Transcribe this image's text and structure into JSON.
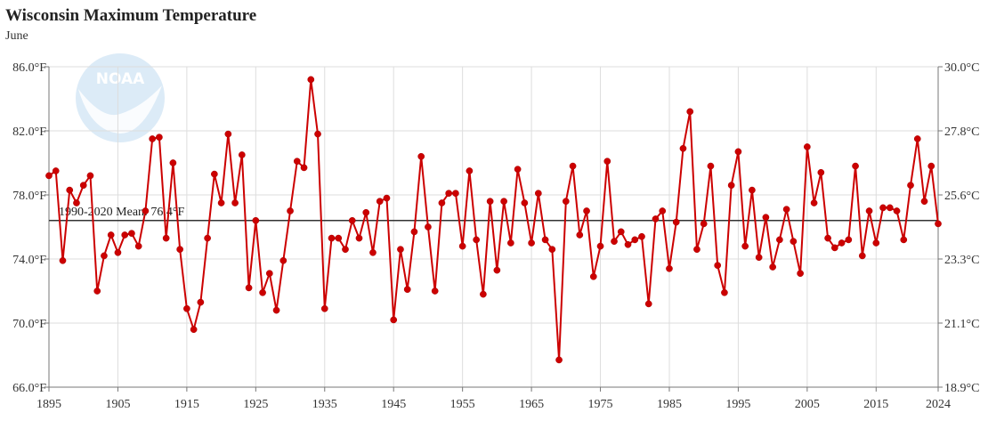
{
  "chart_data": {
    "type": "line",
    "title": "Wisconsin Maximum Temperature",
    "subtitle": "June",
    "xlabel": "",
    "ylabel": "",
    "xlim": [
      1895,
      2024
    ],
    "ylim": [
      66,
      86
    ],
    "y_ticks_left": [
      "66.0°F",
      "70.0°F",
      "74.0°F",
      "78.0°F",
      "82.0°F",
      "86.0°F"
    ],
    "y_tick_values": [
      66,
      70,
      74,
      78,
      82,
      86
    ],
    "y_ticks_right": [
      "18.9°C",
      "21.1°C",
      "23.3°C",
      "25.6°C",
      "27.8°C",
      "30.0°C"
    ],
    "x_ticks": [
      "1895",
      "1905",
      "1915",
      "1925",
      "1935",
      "1945",
      "1955",
      "1965",
      "1975",
      "1985",
      "1995",
      "2005",
      "2015",
      "2024"
    ],
    "x_tick_values": [
      1895,
      1905,
      1915,
      1925,
      1935,
      1945,
      1955,
      1965,
      1975,
      1985,
      1995,
      2005,
      2015,
      2024
    ],
    "grid": true,
    "colors": {
      "line": "#cc0000",
      "marker": "#cc0000",
      "mean": "#333333",
      "grid": "#dddddd",
      "axis": "#777777"
    },
    "mean": {
      "value": 76.4,
      "label": "1990-2020 Mean: 76.4°F"
    },
    "logo": {
      "name": "noaa-logo",
      "text": "NOAA"
    },
    "series": [
      {
        "x": [
          1895,
          1896,
          1897,
          1898,
          1899,
          1900,
          1901,
          1902,
          1903,
          1904,
          1905,
          1906,
          1907,
          1908,
          1909,
          1910,
          1911,
          1912,
          1913,
          1914,
          1915,
          1916,
          1917,
          1918,
          1919,
          1920,
          1921,
          1922,
          1923,
          1924,
          1925,
          1926,
          1927,
          1928,
          1929,
          1930,
          1931,
          1932,
          1933,
          1934,
          1935,
          1936,
          1937,
          1938,
          1939,
          1940,
          1941,
          1942,
          1943,
          1944,
          1945,
          1946,
          1947,
          1948,
          1949,
          1950,
          1951,
          1952,
          1953,
          1954,
          1955,
          1956,
          1957,
          1958,
          1959,
          1960,
          1961,
          1962,
          1963,
          1964,
          1965,
          1966,
          1967,
          1968,
          1969,
          1970,
          1971,
          1972,
          1973,
          1974,
          1975,
          1976,
          1977,
          1978,
          1979,
          1980,
          1981,
          1982,
          1983,
          1984,
          1985,
          1986,
          1987,
          1988,
          1989,
          1990,
          1991,
          1992,
          1993,
          1994,
          1995,
          1996,
          1997,
          1998,
          1999,
          2000,
          2001,
          2002,
          2003,
          2004,
          2005,
          2006,
          2007,
          2008,
          2009,
          2010,
          2011,
          2012,
          2013,
          2014,
          2015,
          2016,
          2017,
          2018,
          2019,
          2020,
          2021,
          2022,
          2023,
          2024
        ],
        "values": [
          79.2,
          79.5,
          73.9,
          78.3,
          77.5,
          78.6,
          79.2,
          72.0,
          74.2,
          75.5,
          74.4,
          75.5,
          75.6,
          74.8,
          77.0,
          81.5,
          81.6,
          75.3,
          80.0,
          74.6,
          70.9,
          69.6,
          71.3,
          75.3,
          79.3,
          77.5,
          81.8,
          77.5,
          80.5,
          72.2,
          76.4,
          71.9,
          73.1,
          70.8,
          73.9,
          77.0,
          80.1,
          79.7,
          85.2,
          81.8,
          70.9,
          75.3,
          75.3,
          74.6,
          76.4,
          75.3,
          76.9,
          74.4,
          77.6,
          77.8,
          70.2,
          74.6,
          72.1,
          75.7,
          80.4,
          76.0,
          72.0,
          77.5,
          78.1,
          78.1,
          74.8,
          79.5,
          75.2,
          71.8,
          77.6,
          73.3,
          77.6,
          75.0,
          79.6,
          77.5,
          75.0,
          78.1,
          75.2,
          74.6,
          67.7,
          77.6,
          79.8,
          75.5,
          77.0,
          72.9,
          74.8,
          80.1,
          75.1,
          75.7,
          74.9,
          75.2,
          75.4,
          71.2,
          76.5,
          77.0,
          73.4,
          76.3,
          80.9,
          83.2,
          74.6,
          76.2,
          79.8,
          73.6,
          71.9,
          78.6,
          80.7,
          74.8,
          78.3,
          74.1,
          76.6,
          73.5,
          75.2,
          77.1,
          75.1,
          73.1,
          81.0,
          77.5,
          79.4,
          75.3,
          74.7,
          75.0,
          75.2,
          79.8,
          74.2,
          77.0,
          75.0,
          77.2,
          77.2,
          77.0,
          75.2,
          78.6,
          81.5,
          77.6,
          79.8,
          76.2
        ]
      }
    ]
  }
}
